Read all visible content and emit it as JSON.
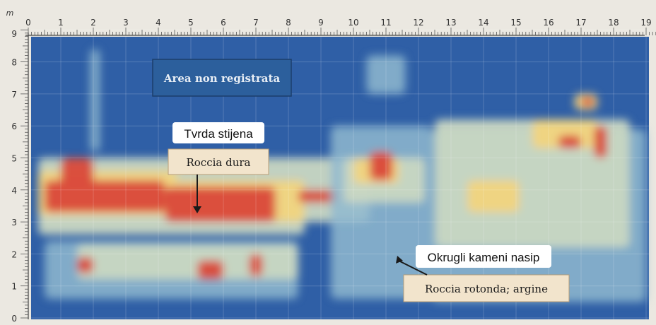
{
  "chart_data": {
    "type": "heatmap",
    "x_unit": "m",
    "y_unit": "m",
    "xlim": [
      0,
      19.5
    ],
    "ylim": [
      0,
      9
    ],
    "x_ticks": [
      "0",
      "1",
      "2",
      "3",
      "4",
      "5",
      "6",
      "7",
      "8",
      "9",
      "10",
      "11",
      "12",
      "13",
      "14",
      "15",
      "16",
      "17",
      "18",
      "19"
    ],
    "y_ticks": [
      "0",
      "1",
      "2",
      "3",
      "4",
      "5",
      "6",
      "7",
      "8",
      "9"
    ],
    "grid": true,
    "colors": {
      "background": "#2f5fa6",
      "low": "#8fb9cf",
      "mid": "#c9d7c2",
      "high": "#f1d47e",
      "peak": "#d9483a"
    },
    "zones": [
      {
        "x": [
          0.3,
          10.5
        ],
        "y": [
          3.0,
          5.0
        ],
        "level": "mid"
      },
      {
        "x": [
          0.3,
          8.5
        ],
        "y": [
          2.6,
          3.3
        ],
        "level": "mid"
      },
      {
        "x": [
          0.3,
          4.6
        ],
        "y": [
          3.2,
          4.6
        ],
        "level": "high"
      },
      {
        "x": [
          4.6,
          8.5
        ],
        "y": [
          3.0,
          4.3
        ],
        "level": "high"
      },
      {
        "x": [
          0.5,
          4.2
        ],
        "y": [
          3.3,
          4.3
        ],
        "level": "peak"
      },
      {
        "x": [
          1.0,
          2.0
        ],
        "y": [
          4.2,
          5.0
        ],
        "level": "peak"
      },
      {
        "x": [
          4.2,
          7.6
        ],
        "y": [
          3.0,
          4.1
        ],
        "level": "peak"
      },
      {
        "x": [
          8.3,
          9.5
        ],
        "y": [
          3.6,
          4.0
        ],
        "level": "peak"
      },
      {
        "x": [
          0.5,
          8.3
        ],
        "y": [
          0.6,
          2.4
        ],
        "level": "low"
      },
      {
        "x": [
          1.5,
          8.3
        ],
        "y": [
          1.2,
          2.3
        ],
        "level": "mid"
      },
      {
        "x": [
          5.2,
          6.0
        ],
        "y": [
          1.2,
          1.8
        ],
        "level": "peak"
      },
      {
        "x": [
          6.8,
          7.2
        ],
        "y": [
          1.3,
          2.0
        ],
        "level": "peak"
      },
      {
        "x": [
          1.5,
          2.0
        ],
        "y": [
          1.4,
          1.9
        ],
        "level": "peak"
      },
      {
        "x": [
          9.3,
          12.4
        ],
        "y": [
          0.6,
          6.0
        ],
        "level": "low"
      },
      {
        "x": [
          9.7,
          12.2
        ],
        "y": [
          3.6,
          5.0
        ],
        "level": "mid"
      },
      {
        "x": [
          10.0,
          11.4
        ],
        "y": [
          4.2,
          5.0
        ],
        "level": "high"
      },
      {
        "x": [
          10.5,
          11.2
        ],
        "y": [
          4.3,
          5.2
        ],
        "level": "peak"
      },
      {
        "x": [
          10.4,
          11.6
        ],
        "y": [
          7.0,
          8.2
        ],
        "level": "low"
      },
      {
        "x": [
          12.4,
          19.0
        ],
        "y": [
          0.5,
          5.9
        ],
        "level": "low"
      },
      {
        "x": [
          12.5,
          18.5
        ],
        "y": [
          2.2,
          6.2
        ],
        "level": "mid"
      },
      {
        "x": [
          13.5,
          15.1
        ],
        "y": [
          3.3,
          4.3
        ],
        "level": "high"
      },
      {
        "x": [
          15.5,
          17.5
        ],
        "y": [
          5.3,
          6.2
        ],
        "level": "high"
      },
      {
        "x": [
          16.3,
          17.0
        ],
        "y": [
          5.3,
          5.7
        ],
        "level": "peak"
      },
      {
        "x": [
          16.8,
          17.5
        ],
        "y": [
          6.5,
          7.0
        ],
        "level": "high"
      },
      {
        "x": [
          17.0,
          17.4
        ],
        "y": [
          6.6,
          6.9
        ],
        "level": "peak"
      },
      {
        "x": [
          17.4,
          17.8
        ],
        "y": [
          5.0,
          6.0
        ],
        "level": "peak"
      },
      {
        "x": [
          1.9,
          2.2
        ],
        "y": [
          5.2,
          8.4
        ],
        "level": "low"
      }
    ],
    "annotations": [
      {
        "text": "Area non registrata"
      },
      {
        "text": "Tvrda stijena"
      },
      {
        "text": "Roccia dura"
      },
      {
        "text": "Okrugli kameni nasip"
      },
      {
        "text": "Roccia rotonda; argine"
      }
    ]
  }
}
